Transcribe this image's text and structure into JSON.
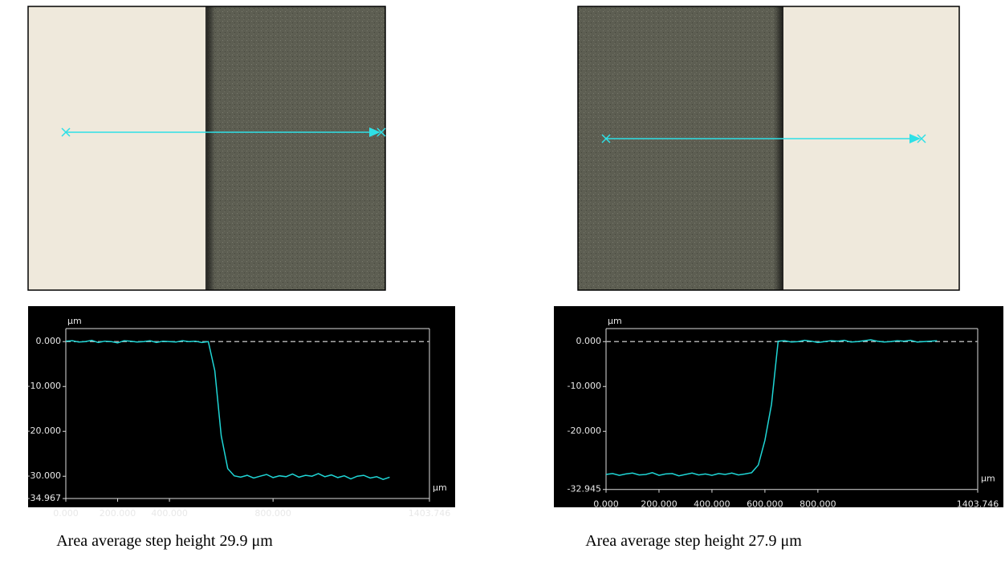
{
  "chart_data": [
    {
      "type": "line",
      "y_unit_label": "μm",
      "x_unit_label": "μm",
      "caption": "Area average step height 29.9 μm",
      "color": "#1fd6d6",
      "zero_line": true,
      "xlim": [
        0,
        1403.746
      ],
      "ylim": [
        -34.967,
        2.9
      ],
      "xticks": [
        {
          "value": 0,
          "label": "0.000"
        },
        {
          "value": 200,
          "label": "200.000"
        },
        {
          "value": 400,
          "label": "400.000"
        },
        {
          "value": 800,
          "label": "800.000"
        },
        {
          "value": 1403.746,
          "label": "1403.746"
        }
      ],
      "yticks": [
        {
          "value": 0,
          "label": "0.000"
        },
        {
          "value": -10,
          "label": "-10.000"
        },
        {
          "value": -20,
          "label": "-20.000"
        },
        {
          "value": -30,
          "label": "-30.000"
        },
        {
          "value": -34.967,
          "label": "-34.967"
        }
      ],
      "x": [
        0,
        25,
        50,
        75,
        100,
        125,
        150,
        175,
        200,
        225,
        250,
        275,
        300,
        325,
        350,
        375,
        400,
        425,
        450,
        475,
        500,
        525,
        550,
        575,
        600,
        625,
        650,
        675,
        700,
        725,
        750,
        775,
        800,
        825,
        850,
        875,
        900,
        925,
        950,
        975,
        1000,
        1025,
        1050,
        1075,
        1100,
        1125,
        1150,
        1175,
        1200,
        1225,
        1250
      ],
      "values": [
        0.1,
        0.2,
        -0.1,
        0.0,
        0.3,
        -0.2,
        0.1,
        0.0,
        -0.3,
        0.2,
        0.1,
        -0.1,
        0.0,
        0.2,
        -0.2,
        0.1,
        0.0,
        -0.1,
        0.2,
        0.0,
        0.1,
        -0.2,
        0.0,
        -6.5,
        -21.0,
        -28.3,
        -29.9,
        -30.2,
        -29.8,
        -30.4,
        -30.0,
        -29.6,
        -30.3,
        -29.9,
        -30.1,
        -29.5,
        -30.2,
        -29.8,
        -30.0,
        -29.4,
        -30.1,
        -29.7,
        -30.3,
        -29.9,
        -30.6,
        -30.0,
        -29.8,
        -30.4,
        -30.1,
        -30.7,
        -30.2
      ]
    },
    {
      "type": "line",
      "y_unit_label": "μm",
      "x_unit_label": "μm",
      "caption": "Area average step height 27.9 μm",
      "color": "#1fd6d6",
      "zero_line": true,
      "xlim": [
        0,
        1403.746
      ],
      "ylim": [
        -32.945,
        2.9
      ],
      "xticks": [
        {
          "value": 0,
          "label": "0.000"
        },
        {
          "value": 200,
          "label": "200.000"
        },
        {
          "value": 400,
          "label": "400.000"
        },
        {
          "value": 600,
          "label": "600.000"
        },
        {
          "value": 800,
          "label": "800.000"
        },
        {
          "value": 1403.746,
          "label": "1403.746"
        }
      ],
      "yticks": [
        {
          "value": 0,
          "label": "0.000"
        },
        {
          "value": -10,
          "label": "-10.000"
        },
        {
          "value": -20,
          "label": "-20.000"
        },
        {
          "value": -32.945,
          "label": "-32.945"
        }
      ],
      "x": [
        0,
        25,
        50,
        75,
        100,
        125,
        150,
        175,
        200,
        225,
        250,
        275,
        300,
        325,
        350,
        375,
        400,
        425,
        450,
        475,
        500,
        525,
        550,
        575,
        600,
        625,
        650,
        675,
        700,
        725,
        750,
        775,
        800,
        825,
        850,
        875,
        900,
        925,
        950,
        975,
        1000,
        1025,
        1050,
        1075,
        1100,
        1125,
        1150,
        1175,
        1200,
        1225,
        1250
      ],
      "values": [
        -29.6,
        -29.4,
        -29.8,
        -29.5,
        -29.3,
        -29.7,
        -29.6,
        -29.2,
        -29.8,
        -29.5,
        -29.4,
        -29.9,
        -29.6,
        -29.3,
        -29.7,
        -29.5,
        -29.8,
        -29.4,
        -29.6,
        -29.3,
        -29.7,
        -29.5,
        -29.2,
        -27.5,
        -22.0,
        -14.0,
        0.1,
        0.2,
        -0.1,
        0.0,
        0.3,
        0.1,
        -0.2,
        0.0,
        0.2,
        0.1,
        0.3,
        -0.1,
        0.0,
        0.2,
        0.4,
        0.1,
        -0.1,
        0.0,
        0.2,
        0.1,
        0.3,
        -0.1,
        0.0,
        0.1,
        0.2
      ]
    }
  ]
}
